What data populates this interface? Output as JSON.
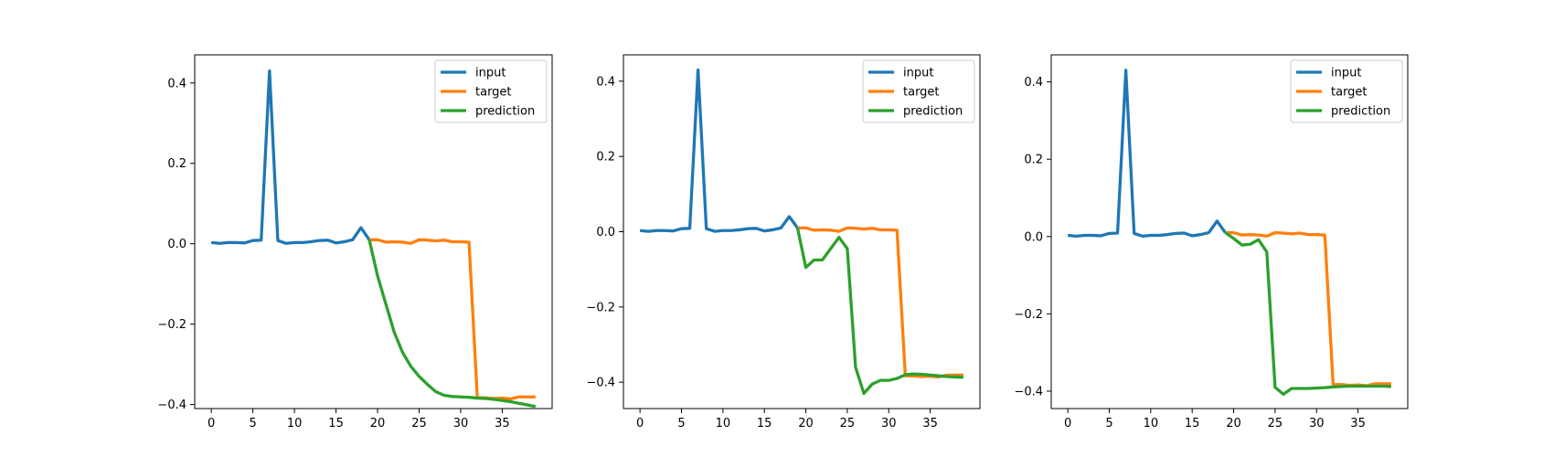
{
  "chart_data": [
    {
      "type": "line",
      "xlim": [
        -2,
        41
      ],
      "ylim": [
        -0.41,
        0.47
      ],
      "xticks": [
        0,
        5,
        10,
        15,
        20,
        25,
        30,
        35
      ],
      "yticks": [
        -0.4,
        -0.2,
        0.0,
        0.2,
        0.4
      ],
      "ytick_labels": [
        "−0.4",
        "−0.2",
        "0.0",
        "0.2",
        "0.4"
      ],
      "legend_position": "top-right",
      "series": [
        {
          "name": "input",
          "color": "#1f77b4",
          "x": [
            0,
            1,
            2,
            3,
            4,
            5,
            6,
            7,
            8,
            9,
            10,
            11,
            12,
            13,
            14,
            15,
            16,
            17,
            18,
            19
          ],
          "y": [
            0.003,
            0.001,
            0.003,
            0.003,
            0.002,
            0.008,
            0.009,
            0.43,
            0.008,
            0.001,
            0.003,
            0.003,
            0.005,
            0.008,
            0.009,
            0.002,
            0.005,
            0.01,
            0.04,
            0.01
          ]
        },
        {
          "name": "target",
          "color": "#ff7f0e",
          "x": [
            19,
            20,
            21,
            22,
            23,
            24,
            25,
            26,
            27,
            28,
            29,
            30,
            31,
            32,
            33,
            34,
            35,
            36,
            37,
            38,
            39
          ],
          "y": [
            0.01,
            0.01,
            0.004,
            0.005,
            0.004,
            0.001,
            0.01,
            0.009,
            0.007,
            0.009,
            0.005,
            0.005,
            0.004,
            -0.383,
            -0.383,
            -0.385,
            -0.384,
            -0.386,
            -0.381,
            -0.381,
            -0.381
          ]
        },
        {
          "name": "prediction",
          "color": "#2ca02c",
          "x": [
            19,
            20,
            21,
            22,
            23,
            24,
            25,
            26,
            27,
            28,
            29,
            30,
            31,
            32,
            33,
            34,
            35,
            36,
            37,
            38,
            39
          ],
          "y": [
            0.01,
            -0.08,
            -0.15,
            -0.22,
            -0.27,
            -0.305,
            -0.33,
            -0.35,
            -0.368,
            -0.377,
            -0.38,
            -0.381,
            -0.382,
            -0.384,
            -0.385,
            -0.387,
            -0.39,
            -0.393,
            -0.397,
            -0.401,
            -0.405
          ]
        }
      ]
    },
    {
      "type": "line",
      "xlim": [
        -2,
        41
      ],
      "ylim": [
        -0.47,
        0.47
      ],
      "xticks": [
        0,
        5,
        10,
        15,
        20,
        25,
        30,
        35
      ],
      "yticks": [
        -0.4,
        -0.2,
        0.0,
        0.2,
        0.4
      ],
      "ytick_labels": [
        "−0.4",
        "−0.2",
        "0.0",
        "0.2",
        "0.4"
      ],
      "legend_position": "top-right",
      "series": [
        {
          "name": "input",
          "color": "#1f77b4",
          "x": [
            0,
            1,
            2,
            3,
            4,
            5,
            6,
            7,
            8,
            9,
            10,
            11,
            12,
            13,
            14,
            15,
            16,
            17,
            18,
            19
          ],
          "y": [
            0.003,
            0.001,
            0.003,
            0.003,
            0.002,
            0.008,
            0.009,
            0.43,
            0.008,
            0.001,
            0.003,
            0.003,
            0.005,
            0.008,
            0.009,
            0.002,
            0.005,
            0.01,
            0.04,
            0.01
          ]
        },
        {
          "name": "target",
          "color": "#ff7f0e",
          "x": [
            19,
            20,
            21,
            22,
            23,
            24,
            25,
            26,
            27,
            28,
            29,
            30,
            31,
            32,
            33,
            34,
            35,
            36,
            37,
            38,
            39
          ],
          "y": [
            0.01,
            0.01,
            0.004,
            0.005,
            0.004,
            0.001,
            0.01,
            0.009,
            0.007,
            0.009,
            0.005,
            0.005,
            0.004,
            -0.383,
            -0.383,
            -0.385,
            -0.384,
            -0.386,
            -0.381,
            -0.381,
            -0.381
          ]
        },
        {
          "name": "prediction",
          "color": "#2ca02c",
          "x": [
            19,
            20,
            21,
            22,
            23,
            24,
            25,
            26,
            27,
            28,
            29,
            30,
            31,
            32,
            33,
            34,
            35,
            36,
            37,
            38,
            39
          ],
          "y": [
            0.01,
            -0.095,
            -0.075,
            -0.075,
            -0.045,
            -0.015,
            -0.045,
            -0.36,
            -0.43,
            -0.405,
            -0.395,
            -0.395,
            -0.39,
            -0.38,
            -0.378,
            -0.379,
            -0.381,
            -0.383,
            -0.385,
            -0.386,
            -0.387
          ]
        }
      ]
    },
    {
      "type": "line",
      "xlim": [
        -2,
        41
      ],
      "ylim": [
        -0.445,
        0.47
      ],
      "xticks": [
        0,
        5,
        10,
        15,
        20,
        25,
        30,
        35
      ],
      "yticks": [
        -0.4,
        -0.2,
        0.0,
        0.2,
        0.4
      ],
      "ytick_labels": [
        "−0.4",
        "−0.2",
        "0.0",
        "0.2",
        "0.4"
      ],
      "legend_position": "top-right",
      "series": [
        {
          "name": "input",
          "color": "#1f77b4",
          "x": [
            0,
            1,
            2,
            3,
            4,
            5,
            6,
            7,
            8,
            9,
            10,
            11,
            12,
            13,
            14,
            15,
            16,
            17,
            18,
            19
          ],
          "y": [
            0.003,
            0.001,
            0.003,
            0.003,
            0.002,
            0.008,
            0.009,
            0.43,
            0.008,
            0.001,
            0.003,
            0.003,
            0.005,
            0.008,
            0.009,
            0.002,
            0.005,
            0.01,
            0.04,
            0.01
          ]
        },
        {
          "name": "target",
          "color": "#ff7f0e",
          "x": [
            19,
            20,
            21,
            22,
            23,
            24,
            25,
            26,
            27,
            28,
            29,
            30,
            31,
            32,
            33,
            34,
            35,
            36,
            37,
            38,
            39
          ],
          "y": [
            0.01,
            0.01,
            0.004,
            0.005,
            0.004,
            0.001,
            0.01,
            0.009,
            0.007,
            0.009,
            0.005,
            0.005,
            0.004,
            -0.383,
            -0.383,
            -0.385,
            -0.384,
            -0.386,
            -0.381,
            -0.381,
            -0.381
          ]
        },
        {
          "name": "prediction",
          "color": "#2ca02c",
          "x": [
            19,
            20,
            21,
            22,
            23,
            24,
            25,
            26,
            27,
            28,
            29,
            30,
            31,
            32,
            33,
            34,
            35,
            36,
            37,
            38,
            39
          ],
          "y": [
            0.01,
            -0.005,
            -0.022,
            -0.02,
            -0.008,
            -0.04,
            -0.39,
            -0.408,
            -0.393,
            -0.393,
            -0.393,
            -0.392,
            -0.391,
            -0.389,
            -0.388,
            -0.387,
            -0.387,
            -0.387,
            -0.387,
            -0.387,
            -0.388
          ]
        }
      ]
    }
  ]
}
